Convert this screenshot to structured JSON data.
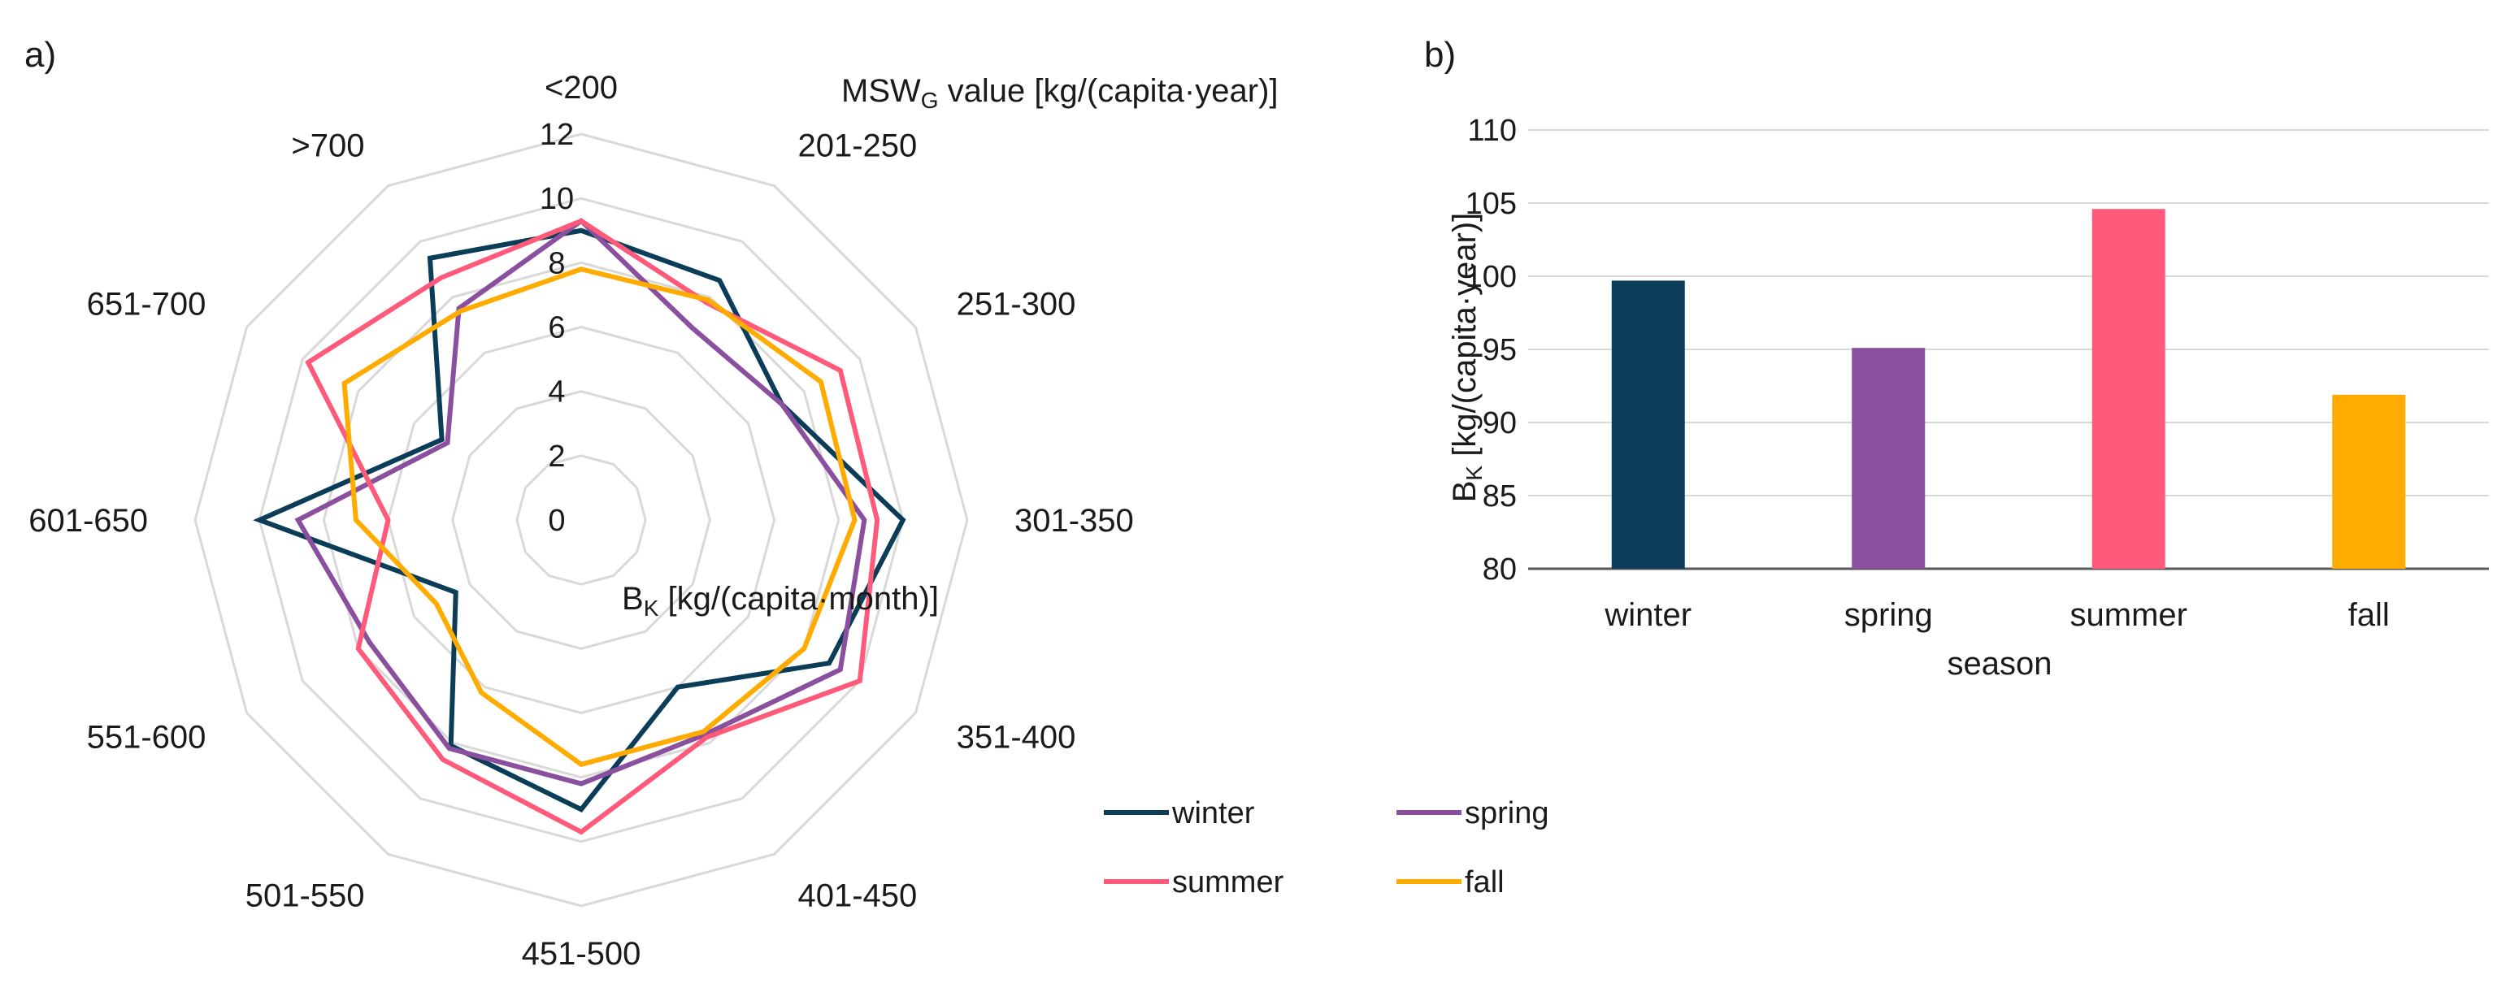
{
  "panel_a_label": "a)",
  "panel_b_label": "b)",
  "colors": {
    "winter": "#0b3d58",
    "spring": "#8a4f9e",
    "summer": "#ff5a7a",
    "fall": "#ffab00",
    "grid": "#d9d9d9",
    "axis": "#595959"
  },
  "chart_data": [
    {
      "type": "radar",
      "title_parts": {
        "pre": "MSW",
        "sub": "G",
        "post": " value [kg/(capita·year)]"
      },
      "value_label_parts": {
        "pre": "B",
        "sub": "K",
        "post": " [kg/(capita·month)]"
      },
      "categories": [
        "<200",
        "201-250",
        "251-300",
        "301-350",
        "351-400",
        "401-450",
        "451-500",
        "501-550",
        "551-600",
        "601-650",
        "651-700",
        ">700"
      ],
      "rmin": 0,
      "rmax": 12,
      "ticks": [
        0,
        2,
        4,
        6,
        8,
        10,
        12
      ],
      "series": [
        {
          "name": "winter",
          "values": [
            9.0,
            8.6,
            7.2,
            10.0,
            8.9,
            6.0,
            9.0,
            8.1,
            4.5,
            10.0,
            5.0,
            9.4
          ]
        },
        {
          "name": "spring",
          "values": [
            9.3,
            6.9,
            7.2,
            8.8,
            9.3,
            7.7,
            8.2,
            8.2,
            7.6,
            8.8,
            4.8,
            7.6
          ]
        },
        {
          "name": "summer",
          "values": [
            9.3,
            7.8,
            9.3,
            9.2,
            10.0,
            7.8,
            9.7,
            8.6,
            8.0,
            6.0,
            9.8,
            8.7
          ]
        },
        {
          "name": "fall",
          "values": [
            7.8,
            7.9,
            8.6,
            8.5,
            8.0,
            7.6,
            7.6,
            6.2,
            5.2,
            7.0,
            8.5,
            7.5
          ]
        }
      ],
      "legend": [
        "winter",
        "spring",
        "summer",
        "fall"
      ]
    },
    {
      "type": "bar",
      "categories": [
        "winter",
        "spring",
        "summer",
        "fall"
      ],
      "values": [
        99.7,
        95.1,
        104.6,
        91.9
      ],
      "xlabel": "season",
      "ylabel_parts": {
        "pre": "B",
        "sub": "K",
        "post": " [kg/(capita·year)]"
      },
      "ylim": [
        80,
        110
      ],
      "yticks": [
        80,
        85,
        90,
        95,
        100,
        105,
        110
      ]
    }
  ]
}
